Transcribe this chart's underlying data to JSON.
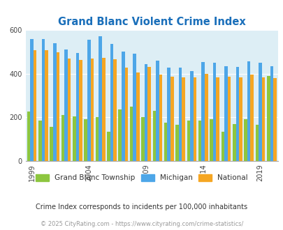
{
  "title": "Grand Blanc Violent Crime Index",
  "title_color": "#1a6fba",
  "years": [
    1999,
    2000,
    2001,
    2002,
    2003,
    2004,
    2005,
    2006,
    2007,
    2008,
    2009,
    2010,
    2011,
    2012,
    2013,
    2014,
    2015,
    2016,
    2017,
    2018,
    2019,
    2020
  ],
  "grand_blanc": [
    225,
    185,
    155,
    210,
    205,
    190,
    200,
    135,
    235,
    250,
    200,
    230,
    175,
    165,
    185,
    185,
    190,
    135,
    170,
    190,
    165,
    390
  ],
  "michigan": [
    557,
    558,
    540,
    510,
    495,
    555,
    570,
    537,
    500,
    492,
    443,
    459,
    429,
    429,
    413,
    452,
    451,
    435,
    430,
    455,
    450,
    435
  ],
  "national": [
    506,
    506,
    498,
    469,
    463,
    469,
    472,
    466,
    428,
    405,
    430,
    394,
    387,
    382,
    383,
    400,
    383,
    386,
    383,
    395,
    382,
    378
  ],
  "color_gb": "#8dc63f",
  "color_mi": "#4da6e8",
  "color_nat": "#f5a623",
  "plot_bg": "#ddeef5",
  "ylim": [
    0,
    600
  ],
  "yticks": [
    0,
    200,
    400,
    600
  ],
  "xtick_years": [
    1999,
    2004,
    2009,
    2014,
    2019
  ],
  "legend_labels": [
    "Grand Blanc Township",
    "Michigan",
    "National"
  ],
  "footnote1": "Crime Index corresponds to incidents per 100,000 inhabitants",
  "footnote2": "© 2025 CityRating.com - https://www.cityrating.com/crime-statistics/",
  "footnote2_color": "#999999"
}
